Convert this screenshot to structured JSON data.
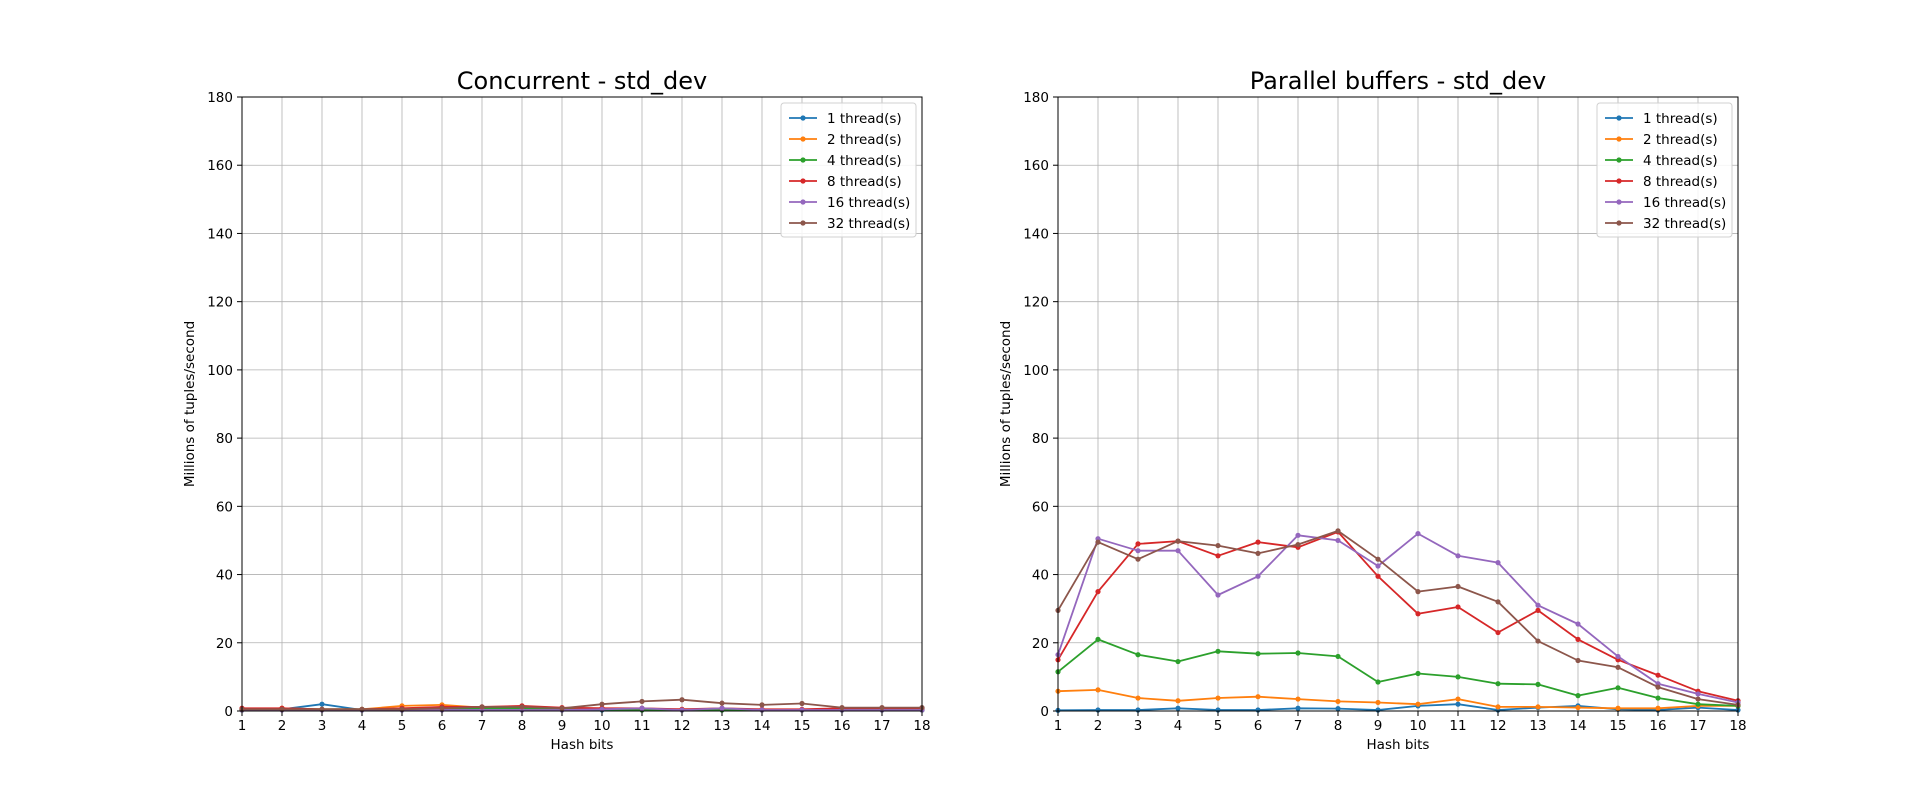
{
  "chart_data": [
    {
      "type": "line",
      "title": "Concurrent - std_dev",
      "xlabel": "Hash bits",
      "ylabel": "Millions of tuples/second",
      "xlim": [
        1,
        18
      ],
      "ylim": [
        0,
        180
      ],
      "x_ticks": [
        "1",
        "2",
        "3",
        "4",
        "5",
        "6",
        "7",
        "8",
        "9",
        "10",
        "11",
        "12",
        "13",
        "14",
        "15",
        "16",
        "17",
        "18"
      ],
      "y_ticks": [
        "0",
        "20",
        "40",
        "60",
        "80",
        "100",
        "120",
        "140",
        "160",
        "180"
      ],
      "grid": true,
      "legend_position": "top-right",
      "x": [
        1,
        2,
        3,
        4,
        5,
        6,
        7,
        8,
        9,
        10,
        11,
        12,
        13,
        14,
        15,
        16,
        17,
        18
      ],
      "series": [
        {
          "name": "1 thread(s)",
          "color": "#1f77b4",
          "values": [
            0.3,
            0.5,
            2.0,
            0.3,
            0.3,
            0.5,
            0.3,
            0.3,
            0.3,
            0.3,
            0.3,
            0.3,
            0.3,
            0.3,
            0.3,
            0.3,
            0.3,
            0.3
          ]
        },
        {
          "name": "2 thread(s)",
          "color": "#ff7f0e",
          "values": [
            0.5,
            0.8,
            0.5,
            0.5,
            1.5,
            1.8,
            1.0,
            1.2,
            0.8,
            0.8,
            0.5,
            0.5,
            0.5,
            0.3,
            0.3,
            0.5,
            0.5,
            0.5
          ]
        },
        {
          "name": "4 thread(s)",
          "color": "#2ca02c",
          "values": [
            0.3,
            0.5,
            0.5,
            0.5,
            0.5,
            0.8,
            0.8,
            0.8,
            0.5,
            0.5,
            0.3,
            0.3,
            0.3,
            0.3,
            0.3,
            0.3,
            0.3,
            0.3
          ]
        },
        {
          "name": "8 thread(s)",
          "color": "#d62728",
          "values": [
            0.8,
            0.8,
            0.5,
            0.5,
            0.8,
            1.2,
            1.2,
            1.5,
            1.0,
            0.8,
            0.8,
            0.5,
            0.8,
            0.5,
            0.5,
            0.8,
            0.8,
            0.8
          ]
        },
        {
          "name": "16 thread(s)",
          "color": "#9467bd",
          "values": [
            0.3,
            0.3,
            0.3,
            0.3,
            0.3,
            0.3,
            0.3,
            0.3,
            0.3,
            0.5,
            0.8,
            0.3,
            0.8,
            0.3,
            0.3,
            0.3,
            0.3,
            0.3
          ]
        },
        {
          "name": "32 thread(s)",
          "color": "#8c564b",
          "values": [
            0.5,
            0.5,
            0.5,
            0.5,
            0.5,
            0.8,
            1.2,
            1.2,
            0.8,
            2.0,
            2.8,
            3.3,
            2.3,
            1.8,
            2.2,
            1.0,
            1.0,
            1.0
          ]
        }
      ]
    },
    {
      "type": "line",
      "title": "Parallel buffers - std_dev",
      "xlabel": "Hash bits",
      "ylabel": "Millions of tuples/second",
      "xlim": [
        1,
        18
      ],
      "ylim": [
        0,
        180
      ],
      "x_ticks": [
        "1",
        "2",
        "3",
        "4",
        "5",
        "6",
        "7",
        "8",
        "9",
        "10",
        "11",
        "12",
        "13",
        "14",
        "15",
        "16",
        "17",
        "18"
      ],
      "y_ticks": [
        "0",
        "20",
        "40",
        "60",
        "80",
        "100",
        "120",
        "140",
        "160",
        "180"
      ],
      "grid": true,
      "legend_position": "top-right",
      "x": [
        1,
        2,
        3,
        4,
        5,
        6,
        7,
        8,
        9,
        10,
        11,
        12,
        13,
        14,
        15,
        16,
        17,
        18
      ],
      "series": [
        {
          "name": "1 thread(s)",
          "color": "#1f77b4",
          "values": [
            0.2,
            0.3,
            0.3,
            0.8,
            0.3,
            0.3,
            0.8,
            0.7,
            0.3,
            1.5,
            2.0,
            0.3,
            1.0,
            1.5,
            0.5,
            0.3,
            1.0,
            0.3
          ]
        },
        {
          "name": "2 thread(s)",
          "color": "#ff7f0e",
          "values": [
            5.8,
            6.2,
            3.8,
            3.0,
            3.8,
            4.2,
            3.5,
            2.8,
            2.5,
            2.0,
            3.5,
            1.2,
            1.2,
            1.0,
            0.8,
            0.8,
            1.5,
            1.5
          ]
        },
        {
          "name": "4 thread(s)",
          "color": "#2ca02c",
          "values": [
            11.5,
            21.0,
            16.5,
            14.5,
            17.5,
            16.8,
            17.0,
            16.0,
            8.5,
            11.0,
            10.0,
            8.0,
            7.8,
            4.5,
            6.8,
            3.8,
            2.0,
            1.5
          ]
        },
        {
          "name": "8 thread(s)",
          "color": "#d62728",
          "values": [
            15.0,
            35.0,
            49.0,
            49.8,
            45.5,
            49.5,
            48.0,
            52.5,
            39.5,
            28.5,
            30.5,
            23.0,
            29.5,
            21.0,
            15.0,
            10.5,
            5.8,
            3.0
          ]
        },
        {
          "name": "16 thread(s)",
          "color": "#9467bd",
          "values": [
            16.5,
            50.5,
            47.0,
            47.0,
            34.0,
            39.5,
            51.5,
            50.0,
            42.5,
            52.0,
            45.5,
            43.5,
            31.0,
            25.5,
            16.0,
            8.0,
            5.0,
            2.5
          ]
        },
        {
          "name": "32 thread(s)",
          "color": "#8c564b",
          "values": [
            29.5,
            49.5,
            44.5,
            49.8,
            48.5,
            46.2,
            48.8,
            52.8,
            44.5,
            35.0,
            36.5,
            32.0,
            20.5,
            14.8,
            12.8,
            7.0,
            3.5,
            1.8
          ]
        }
      ]
    }
  ]
}
